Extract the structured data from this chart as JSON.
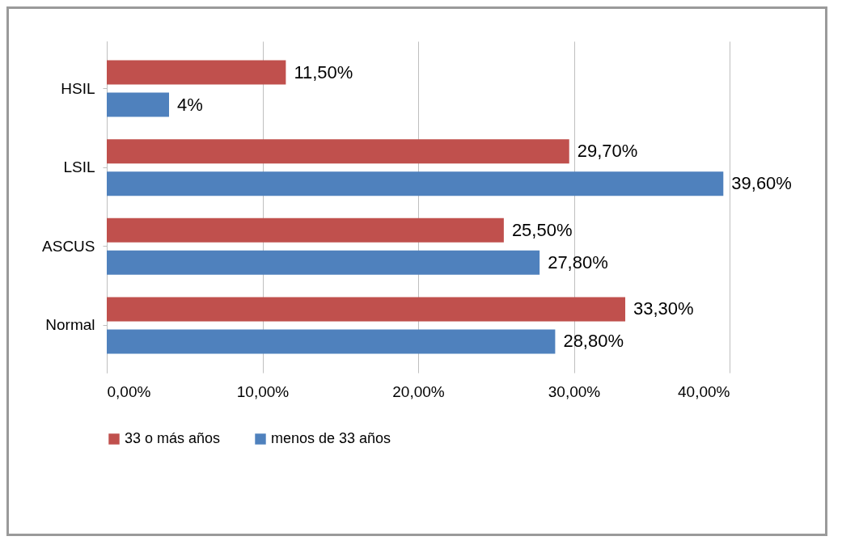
{
  "chart_data": {
    "type": "bar",
    "orientation": "horizontal",
    "categories": [
      "HSIL",
      "LSIL",
      "ASCUS",
      "Normal"
    ],
    "series": [
      {
        "name": "33 o más años",
        "color": "#c0504d",
        "values": [
          11.5,
          29.7,
          25.5,
          33.3
        ],
        "value_labels": [
          "11,50%",
          "29,70%",
          "25,50%",
          "33,30%"
        ]
      },
      {
        "name": "menos de 33 años",
        "color": "#4f81bd",
        "values": [
          4,
          39.6,
          27.8,
          28.8
        ],
        "value_labels": [
          "4%",
          "39,60%",
          "27,80%",
          "28,80%"
        ]
      }
    ],
    "xlim": [
      0,
      40
    ],
    "xticks": [
      {
        "value": 0,
        "label": "0,00%"
      },
      {
        "value": 10,
        "label": "10,00%"
      },
      {
        "value": 20,
        "label": "20,00%"
      },
      {
        "value": 30,
        "label": "30,00%"
      },
      {
        "value": 40,
        "label": "40,00%"
      }
    ],
    "grid": "x",
    "legend": "bottom"
  }
}
